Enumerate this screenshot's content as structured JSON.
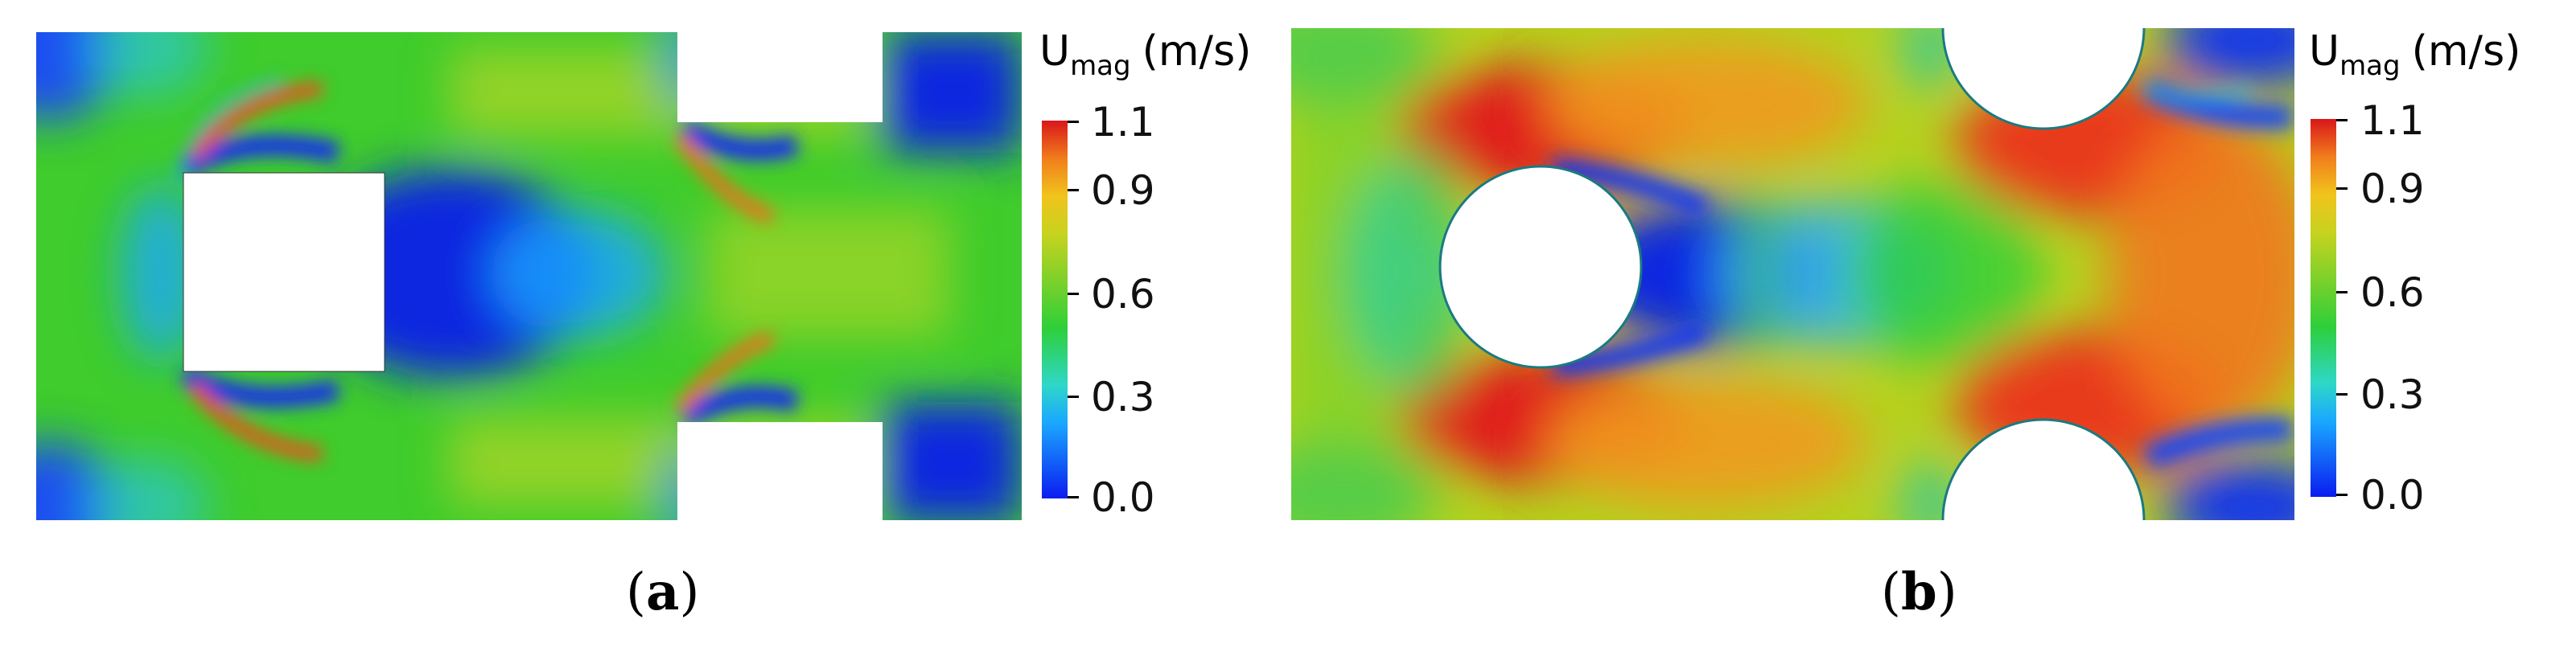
{
  "panels": [
    {
      "caption_letter": "a",
      "colorbar": {
        "title_main": "U",
        "title_sub": "mag",
        "title_unit": "(m/s)",
        "ticks": [
          "1.1",
          "0.9",
          "0.6",
          "0.3",
          "0.0"
        ]
      }
    },
    {
      "caption_letter": "b",
      "colorbar": {
        "title_main": "U",
        "title_sub": "mag",
        "title_unit": "(m/s)",
        "ticks": [
          "1.1",
          "0.9",
          "0.6",
          "0.3",
          "0.0"
        ]
      }
    }
  ],
  "colormap_colors": {
    "low": "#0b1cf0",
    "mid_low": "#1aa8ff",
    "mid": "#2ecf3a",
    "mid_high": "#c7d21f",
    "high": "#d9161a"
  }
}
